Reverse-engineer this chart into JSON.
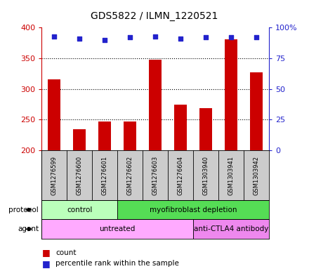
{
  "title": "GDS5822 / ILMN_1220521",
  "samples": [
    "GSM1276599",
    "GSM1276600",
    "GSM1276601",
    "GSM1276602",
    "GSM1276603",
    "GSM1276604",
    "GSM1303940",
    "GSM1303941",
    "GSM1303942"
  ],
  "counts": [
    316,
    235,
    247,
    247,
    348,
    275,
    269,
    381,
    327
  ],
  "percentile_ranks": [
    93,
    91,
    90,
    92,
    93,
    91,
    92,
    92,
    92
  ],
  "ylim_left": [
    200,
    400
  ],
  "ylim_right": [
    0,
    100
  ],
  "yticks_left": [
    200,
    250,
    300,
    350,
    400
  ],
  "yticks_right": [
    0,
    25,
    50,
    75,
    100
  ],
  "ytick_labels_right": [
    "0",
    "25",
    "50",
    "75",
    "100%"
  ],
  "bar_color": "#cc0000",
  "dot_color": "#2222cc",
  "protocol_groups": [
    {
      "text": "control",
      "indices": [
        0,
        1,
        2
      ],
      "color": "#bbffbb"
    },
    {
      "text": "myofibroblast depletion",
      "indices": [
        3,
        4,
        5,
        6,
        7,
        8
      ],
      "color": "#55dd55"
    }
  ],
  "agent_groups": [
    {
      "text": "untreated",
      "indices": [
        0,
        1,
        2,
        3,
        4,
        5
      ],
      "color": "#ffaaff"
    },
    {
      "text": "anti-CTLA4 antibody",
      "indices": [
        6,
        7,
        8
      ],
      "color": "#ee88ee"
    }
  ],
  "legend_count_label": "count",
  "legend_pct_label": "percentile rank within the sample",
  "left_axis_color": "#cc0000",
  "right_axis_color": "#2222cc",
  "label_bg_color": "#cccccc",
  "plot_bg_color": "#ffffff",
  "gridline_values": [
    250,
    300,
    350
  ]
}
